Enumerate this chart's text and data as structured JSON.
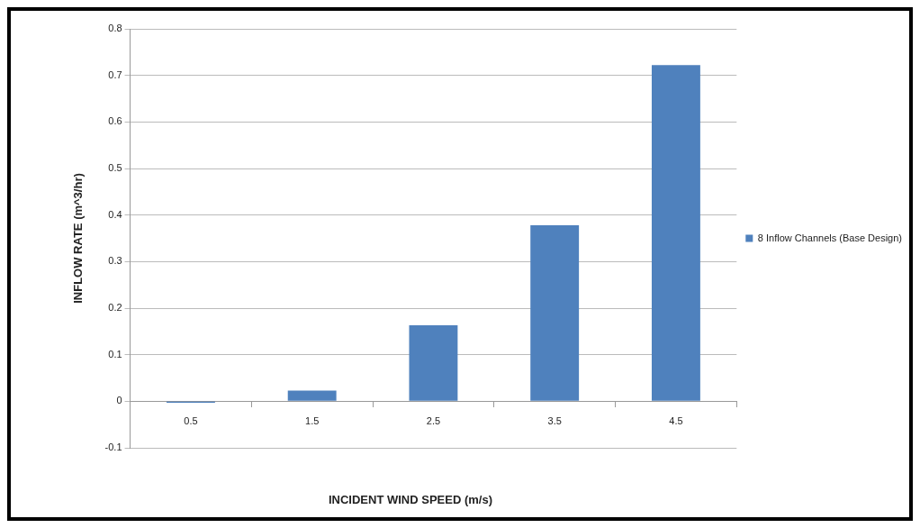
{
  "chart_data": {
    "type": "bar",
    "xlabel": "INCIDENT WIND SPEED (m/s)",
    "ylabel": "INFLOW RATE (m^3/hr)",
    "categories": [
      "0.5",
      "1.5",
      "2.5",
      "3.5",
      "4.5"
    ],
    "series": [
      {
        "name": "8 Inflow Channels (Base Design)",
        "color": "#4f81bd",
        "values": [
          -0.003,
          0.023,
          0.163,
          0.378,
          0.722
        ]
      }
    ],
    "ylim": [
      -0.1,
      0.8
    ],
    "yticks": [
      -0.1,
      0,
      0.1,
      0.2,
      0.3,
      0.4,
      0.5,
      0.6,
      0.7,
      0.8
    ],
    "grid": "y",
    "legend": "right"
  }
}
